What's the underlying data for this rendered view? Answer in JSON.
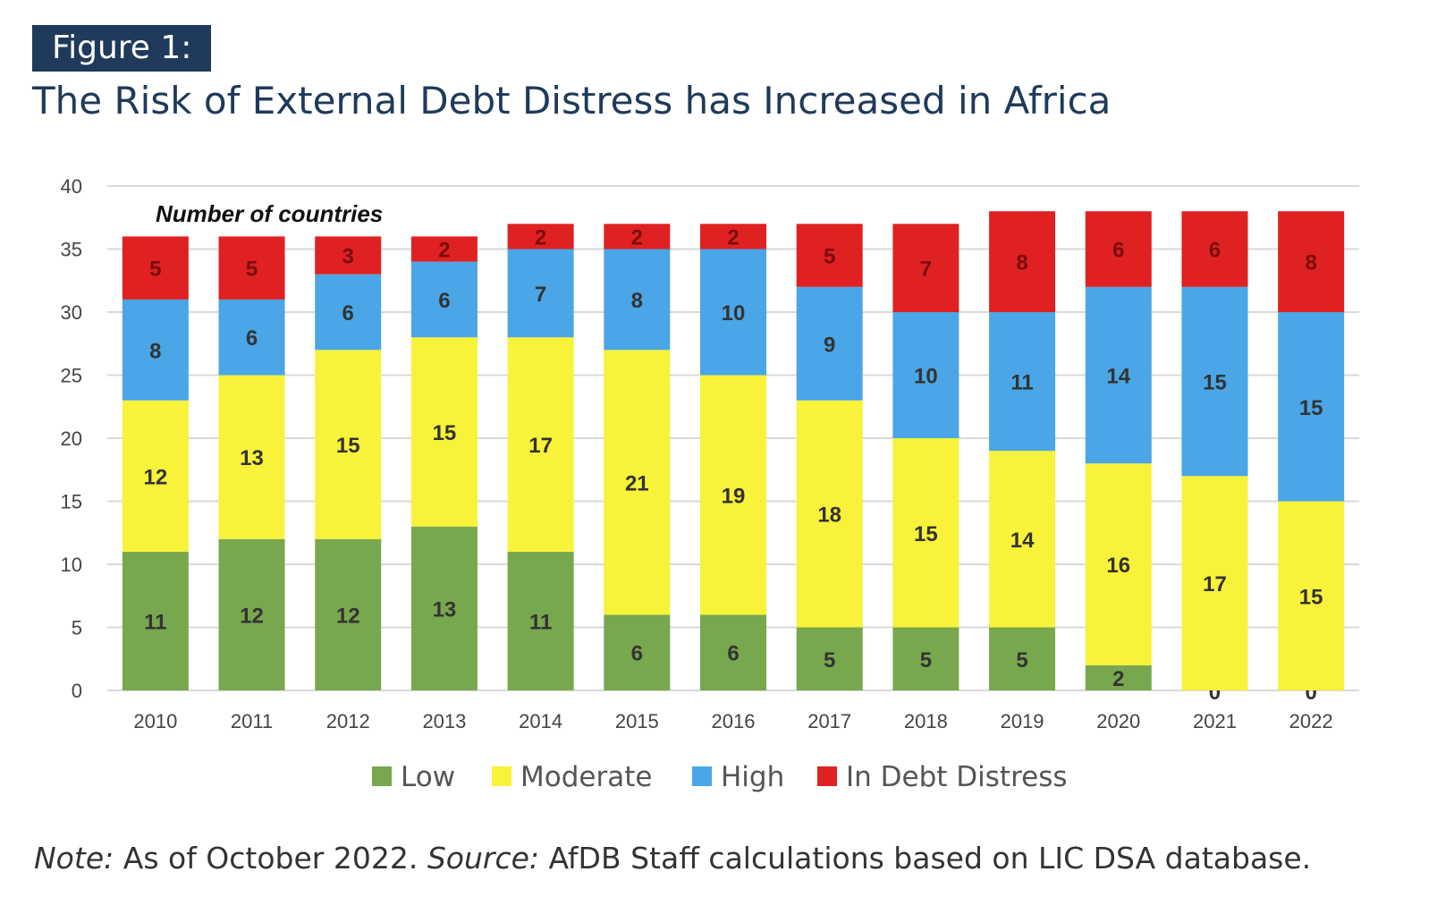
{
  "figure_label": "Figure 1:",
  "figure_title": "The Risk of External Debt Distress has Increased in Africa",
  "note": {
    "note_label": "Note:",
    "note_text": "As of October 2022.",
    "source_label": "Source:",
    "source_text": "AfDB Staff calculations based on LIC DSA database."
  },
  "colors": {
    "Low": "#78a84e",
    "Moderate": "#f8f23a",
    "High": "#4aa6e6",
    "In Debt Distress": "#e02121",
    "title": "#1f3a5a",
    "grid": "#d9d9d9"
  },
  "chart_data": {
    "type": "bar",
    "stacked": true,
    "title": "Number of countries",
    "xlabel": "",
    "ylabel": "",
    "ylim": [
      0,
      40
    ],
    "yticks": [
      0,
      5,
      10,
      15,
      20,
      25,
      30,
      35,
      40
    ],
    "grid": true,
    "legend_position": "bottom",
    "categories": [
      "2010",
      "2011",
      "2012",
      "2013",
      "2014",
      "2015",
      "2016",
      "2017",
      "2018",
      "2019",
      "2020",
      "2021",
      "2022"
    ],
    "series": [
      {
        "name": "Low",
        "values": [
          11,
          12,
          12,
          13,
          11,
          6,
          6,
          5,
          5,
          5,
          2,
          0,
          0
        ]
      },
      {
        "name": "Moderate",
        "values": [
          12,
          13,
          15,
          15,
          17,
          21,
          19,
          18,
          15,
          14,
          16,
          17,
          15
        ]
      },
      {
        "name": "High",
        "values": [
          8,
          6,
          6,
          6,
          7,
          8,
          10,
          9,
          10,
          11,
          14,
          15,
          15
        ]
      },
      {
        "name": "In Debt Distress",
        "values": [
          5,
          5,
          3,
          2,
          2,
          2,
          2,
          5,
          7,
          8,
          6,
          6,
          8
        ]
      }
    ]
  }
}
